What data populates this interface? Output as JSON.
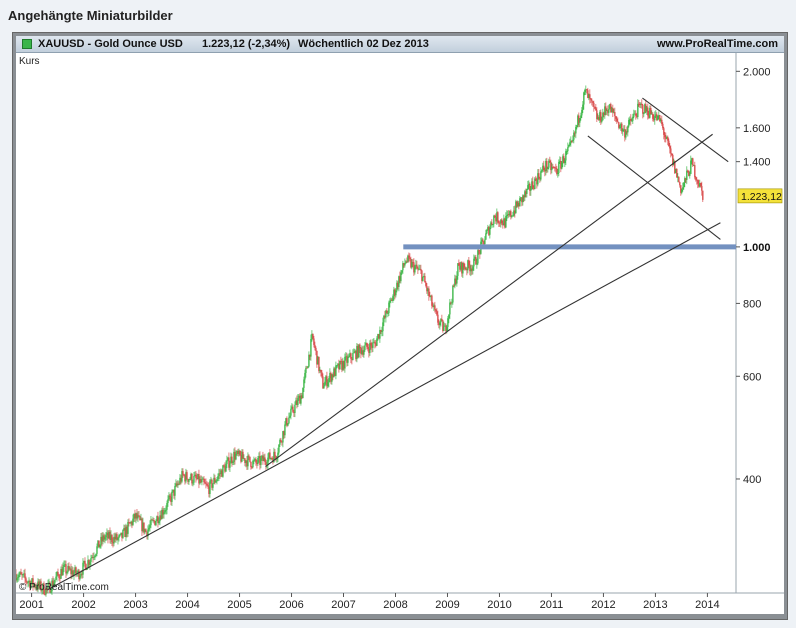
{
  "page": {
    "attachment_title": "Angehängte Miniaturbilder"
  },
  "header": {
    "symbol": "XAUUSD - Gold Ounce USD",
    "price_change": "1.223,12 (-2,34%)",
    "period_date": "Wöchentlich  02 Dez 2013",
    "source": "www.ProRealTime.com"
  },
  "plot_labels": {
    "series_label": "Kurs",
    "copyright": "© ProRealTime.com"
  },
  "colors": {
    "up_candle": "#3fb84a",
    "down_candle": "#d94c4c",
    "trendline": "#333333",
    "resistance_line": "#7391c0",
    "price_tag": "#f4e23a",
    "header_gradient_top": "#dfe7ef"
  },
  "icons": {
    "header_icon": "green-square-icon"
  },
  "chart_data": {
    "type": "candlestick",
    "title": "XAUUSD - Gold Ounce USD",
    "scale": "log",
    "ylim": [
      255,
      2150
    ],
    "xlim": [
      2000.7,
      2014.55
    ],
    "x_ticks": [
      "2001",
      "2002",
      "2003",
      "2004",
      "2005",
      "2006",
      "2007",
      "2008",
      "2009",
      "2010",
      "2011",
      "2012",
      "2013",
      "2014"
    ],
    "y_ticks": [
      {
        "value": 2000,
        "label": "2.000"
      },
      {
        "value": 1600,
        "label": "1.600"
      },
      {
        "value": 1400,
        "label": "1.400"
      },
      {
        "value": 800,
        "label": "800"
      },
      {
        "value": 600,
        "label": "600"
      },
      {
        "value": 400,
        "label": "400"
      }
    ],
    "highlight_level": {
      "value": 1000,
      "label": "1.000"
    },
    "last_price": {
      "value": 1223.12,
      "label": "1.223,12"
    },
    "approx_series": [
      {
        "x": 2000.7,
        "y": 275
      },
      {
        "x": 2001.0,
        "y": 265
      },
      {
        "x": 2001.3,
        "y": 258
      },
      {
        "x": 2001.6,
        "y": 280
      },
      {
        "x": 2001.9,
        "y": 275
      },
      {
        "x": 2002.1,
        "y": 290
      },
      {
        "x": 2002.4,
        "y": 318
      },
      {
        "x": 2002.7,
        "y": 315
      },
      {
        "x": 2003.0,
        "y": 345
      },
      {
        "x": 2003.2,
        "y": 325
      },
      {
        "x": 2003.6,
        "y": 360
      },
      {
        "x": 2003.9,
        "y": 405
      },
      {
        "x": 2004.2,
        "y": 398
      },
      {
        "x": 2004.4,
        "y": 385
      },
      {
        "x": 2004.9,
        "y": 440
      },
      {
        "x": 2005.3,
        "y": 425
      },
      {
        "x": 2005.7,
        "y": 440
      },
      {
        "x": 2005.9,
        "y": 500
      },
      {
        "x": 2006.2,
        "y": 560
      },
      {
        "x": 2006.4,
        "y": 700
      },
      {
        "x": 2006.6,
        "y": 580
      },
      {
        "x": 2006.9,
        "y": 620
      },
      {
        "x": 2007.3,
        "y": 665
      },
      {
        "x": 2007.6,
        "y": 680
      },
      {
        "x": 2007.9,
        "y": 800
      },
      {
        "x": 2008.2,
        "y": 950
      },
      {
        "x": 2008.5,
        "y": 900
      },
      {
        "x": 2008.8,
        "y": 750
      },
      {
        "x": 2008.95,
        "y": 720
      },
      {
        "x": 2009.2,
        "y": 920
      },
      {
        "x": 2009.5,
        "y": 930
      },
      {
        "x": 2009.9,
        "y": 1130
      },
      {
        "x": 2010.1,
        "y": 1100
      },
      {
        "x": 2010.5,
        "y": 1230
      },
      {
        "x": 2010.9,
        "y": 1380
      },
      {
        "x": 2011.1,
        "y": 1350
      },
      {
        "x": 2011.4,
        "y": 1500
      },
      {
        "x": 2011.65,
        "y": 1850
      },
      {
        "x": 2011.9,
        "y": 1650
      },
      {
        "x": 2012.1,
        "y": 1740
      },
      {
        "x": 2012.4,
        "y": 1570
      },
      {
        "x": 2012.7,
        "y": 1740
      },
      {
        "x": 2012.9,
        "y": 1700
      },
      {
        "x": 2013.1,
        "y": 1640
      },
      {
        "x": 2013.3,
        "y": 1430
      },
      {
        "x": 2013.5,
        "y": 1250
      },
      {
        "x": 2013.7,
        "y": 1390
      },
      {
        "x": 2013.92,
        "y": 1223
      }
    ],
    "trendlines": [
      {
        "x1": 2001.3,
        "y1": 258,
        "x2": 2014.25,
        "y2": 1100
      },
      {
        "x1": 2005.5,
        "y1": 420,
        "x2": 2014.1,
        "y2": 1560
      },
      {
        "x1": 2012.75,
        "y1": 1800,
        "x2": 2014.4,
        "y2": 1400
      },
      {
        "x1": 2011.7,
        "y1": 1550,
        "x2": 2014.25,
        "y2": 1030
      }
    ]
  }
}
